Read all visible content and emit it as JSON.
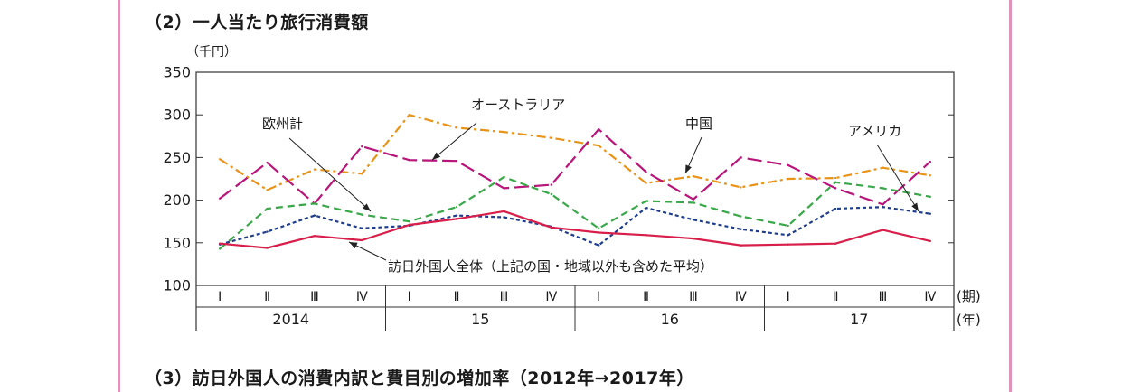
{
  "page": {
    "section2_title": "（2）一人当たり旅行消費額",
    "section3_title": "（3）訪日外国人の消費内訳と費目別の増加率（2012年→2017年）"
  },
  "colors": {
    "frame": "#dd94b8",
    "orange": "#e8941a",
    "magenta": "#b8157a",
    "green": "#3aa84a",
    "navy": "#1f3d8c",
    "red": "#d81e4a"
  },
  "chart_data": {
    "type": "line",
    "ylabel": "（千円）",
    "ylim": [
      100,
      350
    ],
    "yticks": [
      100,
      150,
      200,
      250,
      300,
      350
    ],
    "grid": false,
    "quarter_suffix": "(期)",
    "year_suffix": "(年)",
    "quarters": [
      "Ⅰ",
      "Ⅱ",
      "Ⅲ",
      "Ⅳ",
      "Ⅰ",
      "Ⅱ",
      "Ⅲ",
      "Ⅳ",
      "Ⅰ",
      "Ⅱ",
      "Ⅲ",
      "Ⅳ",
      "Ⅰ",
      "Ⅱ",
      "Ⅲ",
      "Ⅳ"
    ],
    "years": [
      "2014",
      "15",
      "16",
      "17"
    ],
    "series": [
      {
        "key": "china",
        "name": "中国",
        "color": "#e8941a",
        "dash": "10 4 3 4",
        "values": [
          248,
          212,
          236,
          231,
          300,
          285,
          280,
          273,
          264,
          220,
          228,
          215,
          225,
          226,
          238,
          229
        ]
      },
      {
        "key": "australia",
        "name": "オーストラリア",
        "color": "#b8157a",
        "dash": "16 6",
        "values": [
          202,
          244,
          196,
          263,
          247,
          246,
          214,
          218,
          283,
          233,
          201,
          250,
          241,
          214,
          195,
          245
        ]
      },
      {
        "key": "europe",
        "name": "欧州計",
        "color": "#3aa84a",
        "dash": "8 5",
        "values": [
          143,
          190,
          196,
          183,
          175,
          192,
          227,
          207,
          167,
          199,
          197,
          181,
          170,
          221,
          214,
          204
        ]
      },
      {
        "key": "usa",
        "name": "アメリカ",
        "color": "#1f3d8c",
        "dash": "4 3",
        "values": [
          148,
          163,
          182,
          167,
          170,
          182,
          180,
          169,
          147,
          191,
          177,
          166,
          159,
          190,
          192,
          184
        ]
      },
      {
        "key": "all",
        "name": "訪日外国人全体（上記の国・地域以外も含めた平均）",
        "color": "#d81e4a",
        "dash": "",
        "values": [
          149,
          144,
          158,
          153,
          171,
          178,
          187,
          168,
          162,
          159,
          155,
          147,
          148,
          149,
          165,
          152
        ]
      }
    ]
  }
}
